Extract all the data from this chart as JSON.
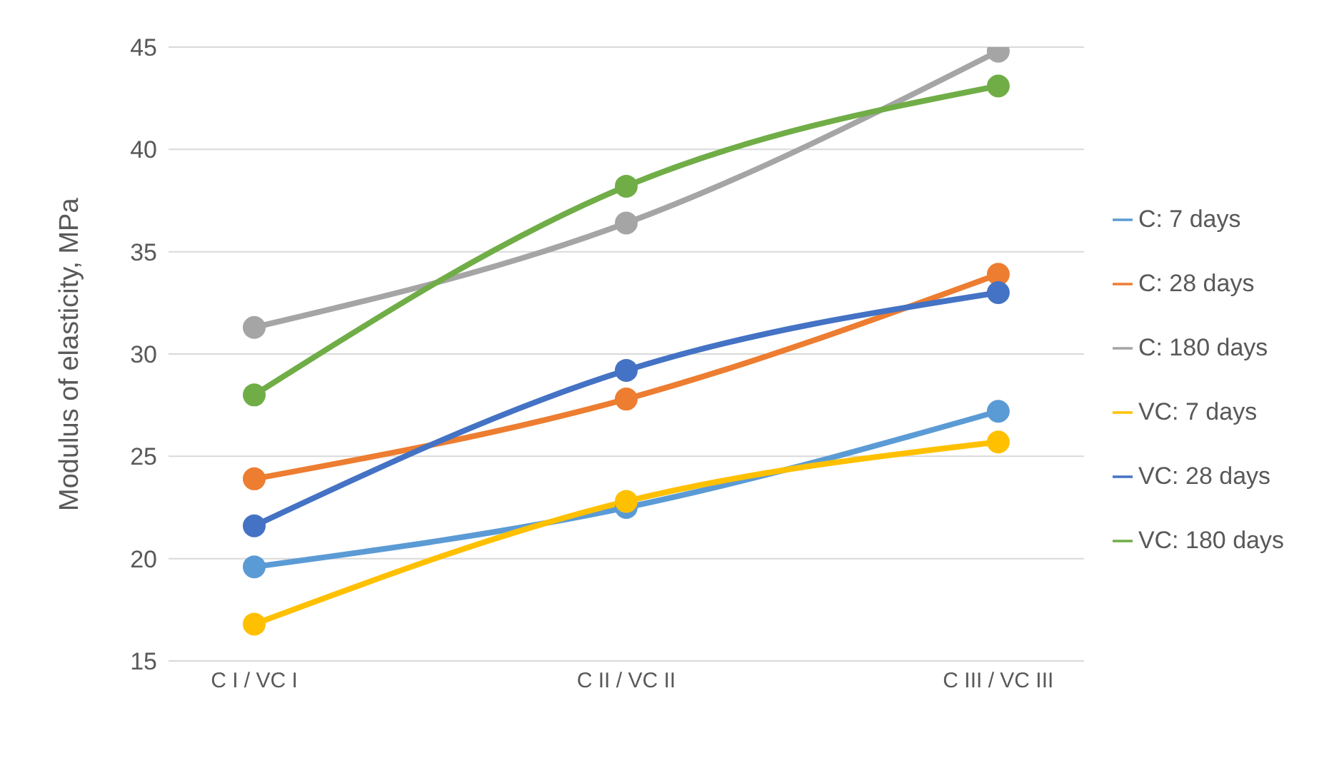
{
  "chart_data": {
    "type": "line",
    "ylabel": "Modulus of elasticity, MPa",
    "categories": [
      "C I / VC I",
      "C II / VC II",
      "C III / VC III"
    ],
    "series": [
      {
        "name": "C: 7 days",
        "color": "#5b9bd5",
        "values": [
          19.6,
          22.5,
          27.2
        ]
      },
      {
        "name": "C: 28 days",
        "color": "#ed7d31",
        "values": [
          23.9,
          27.8,
          33.9
        ]
      },
      {
        "name": "C: 180 days",
        "color": "#a5a5a5",
        "values": [
          31.3,
          36.4,
          44.8
        ]
      },
      {
        "name": "VC: 7 days",
        "color": "#ffc000",
        "values": [
          16.8,
          22.8,
          25.7
        ]
      },
      {
        "name": "VC: 28 days",
        "color": "#4472c4",
        "values": [
          21.6,
          29.2,
          33.0
        ]
      },
      {
        "name": "VC: 180 days",
        "color": "#70ad47",
        "values": [
          28.0,
          38.2,
          43.1
        ]
      }
    ],
    "ylim": [
      15,
      45
    ],
    "yticks": [
      15,
      20,
      25,
      30,
      35,
      40,
      45
    ],
    "grid": "y",
    "legend": "right",
    "marker": "circle",
    "line_style": "solid"
  }
}
